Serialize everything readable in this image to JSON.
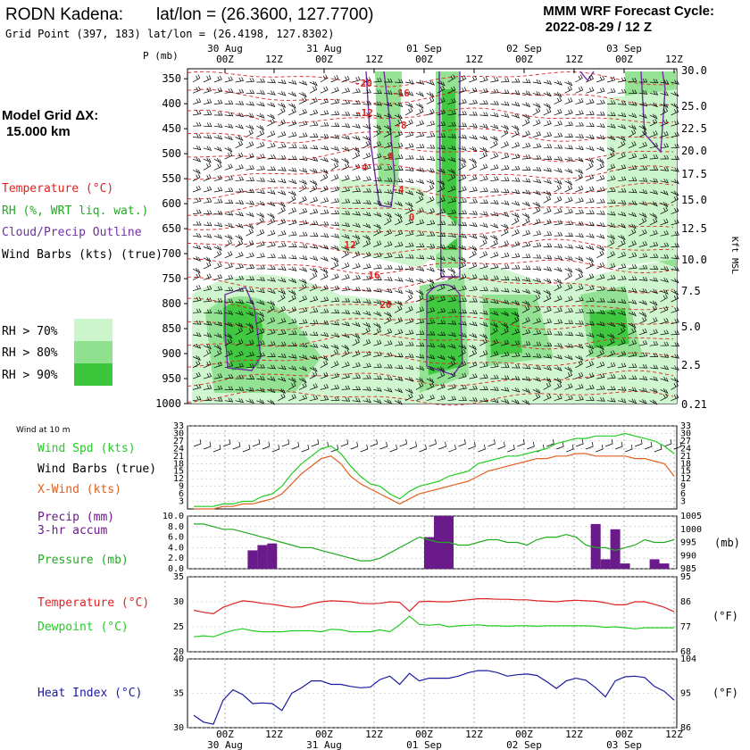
{
  "header": {
    "station": "RODN Kadena:",
    "latlon": "lat/lon = (26.3600, 127.7700)",
    "grid_point": "Grid Point (397, 183) lat/lon = (26.4198, 127.8302)",
    "model_line1": "MMM WRF Forecast Cycle:",
    "model_line2": "2022-08-29 / 12  Z"
  },
  "left_labels": {
    "grid_title": "Model Grid ΔX:",
    "grid_value": "15.000 km",
    "temperature": "Temperature (°C)",
    "rh": "RH (%, WRT liq. wat.)",
    "cloud": "Cloud/Precip Outline",
    "wind_barbs": "Wind Barbs (kts) (true)",
    "rh70": "RH > 70%",
    "rh80": "RH > 80%",
    "rh90": "RH > 90%",
    "wind10m": "Wind at 10 m",
    "wind_spd": "Wind Spd (kts)",
    "wind_barbs2": "Wind Barbs (true)",
    "xwind": "X-Wind (kts)",
    "precip1": "Precip (mm)",
    "precip2": "3-hr accum",
    "pressure": "Pressure (mb)",
    "temp2": "Temperature (°C)",
    "dewpoint": "Dewpoint (°C)",
    "heat_index": "Heat Index (°C)",
    "p_axis": "P (mb)",
    "kft": "Kft MSL",
    "mb_unit": "(mb)",
    "f_unit": "(°F)",
    "f_unit2": "(°F)"
  },
  "colors": {
    "temp": "#dd2222",
    "rh70": "#ccf5cc",
    "rh80": "#8fe08f",
    "rh90": "#3cc63c",
    "cloud": "#7030a0",
    "wind": "#00cc00",
    "xwind": "#e06020",
    "precip": "#6a1a8a",
    "pressure": "#22aa22",
    "dewpoint": "#22cc22",
    "heat": "#1a1aa0"
  },
  "time_axis": {
    "top_days": [
      "30 Aug",
      "31 Aug",
      "01 Sep",
      "02 Sep",
      "03 Sep"
    ],
    "hours": [
      "00Z",
      "12Z",
      "00Z",
      "12Z",
      "00Z",
      "12Z",
      "00Z",
      "12Z",
      "00Z",
      "12Z"
    ],
    "bottom_days": [
      "30 Aug",
      "31 Aug",
      "01 Sep",
      "02 Sep",
      "03 Sep"
    ]
  },
  "chart_data": [
    {
      "type": "heatmap",
      "name": "cross-section",
      "pressure_levels": [
        "350",
        "400",
        "450",
        "500",
        "550",
        "600",
        "650",
        "700",
        "750",
        "800",
        "850",
        "900",
        "950",
        "1000"
      ],
      "height_kft": [
        "30.0",
        "25.0",
        "22.5",
        "20.0",
        "17.5",
        "15.0",
        "12.5",
        "10.0",
        "7.5",
        "5.0",
        "2.5",
        "0.21"
      ],
      "temperature_labels": [
        "-20",
        "-16",
        "-12",
        "-8",
        "-4",
        "-8",
        "-4",
        "0",
        "12",
        "16",
        "20"
      ]
    },
    {
      "type": "line",
      "name": "wind10m",
      "y_ticks": [
        "33",
        "30",
        "27",
        "24",
        "21",
        "18",
        "15",
        "12",
        "9",
        "6",
        "3"
      ],
      "ylim": [
        0,
        33
      ],
      "series": [
        {
          "name": "Wind Spd (kts)",
          "values": [
            1,
            1,
            1,
            2,
            2,
            3,
            3,
            5,
            6,
            9,
            14,
            18,
            21,
            24,
            25,
            22,
            17,
            13,
            10,
            9,
            6,
            4,
            7,
            9,
            10,
            11,
            13,
            14,
            15,
            18,
            19,
            20,
            21,
            21,
            22,
            23,
            24,
            26,
            27,
            28,
            28,
            29,
            29,
            29,
            30,
            29,
            28,
            27,
            25,
            22
          ]
        },
        {
          "name": "X-Wind (kts)",
          "values": [
            0,
            0,
            0,
            1,
            1,
            2,
            2,
            3,
            4,
            6,
            10,
            14,
            17,
            20,
            21,
            18,
            13,
            10,
            8,
            6,
            4,
            2,
            4,
            6,
            7,
            8,
            9,
            10,
            11,
            13,
            15,
            16,
            17,
            18,
            19,
            20,
            20,
            21,
            21,
            22,
            22,
            21,
            21,
            21,
            21,
            20,
            20,
            19,
            18,
            13
          ]
        }
      ]
    },
    {
      "type": "bar",
      "name": "precip_pressure",
      "precip_ticks": [
        "10.0",
        "8.0",
        "6.0",
        "4.0",
        "2.0",
        "0.0"
      ],
      "pressure_ticks": [
        "1005",
        "1000",
        "995",
        "990",
        "985"
      ],
      "precip_ylim": [
        0,
        10
      ],
      "pressure_ylim": [
        985,
        1005
      ],
      "precip_values": [
        0,
        0,
        0,
        0,
        0,
        0,
        3.5,
        4.5,
        4.8,
        0,
        0,
        0,
        0,
        0,
        0,
        0,
        0,
        0,
        0,
        0,
        0,
        0,
        0,
        0,
        6.0,
        10.0,
        10.0,
        0,
        0,
        0,
        0,
        0,
        0,
        0,
        0,
        0,
        0,
        0,
        0,
        0,
        0,
        8.5,
        1.8,
        7.5,
        1.0,
        0,
        0,
        1.8,
        1.0,
        0
      ],
      "pressure_values": [
        1002,
        1002,
        1001,
        1000,
        1000,
        999,
        998,
        997,
        996,
        995,
        994,
        993,
        993,
        992,
        991,
        990,
        989,
        988,
        988,
        989,
        991,
        993,
        995,
        997,
        996,
        995,
        995,
        994,
        994,
        995,
        996,
        996,
        995,
        995,
        994,
        996,
        997,
        997,
        998,
        997,
        994,
        993,
        993,
        992,
        993,
        994,
        996,
        995,
        995,
        996
      ]
    },
    {
      "type": "line",
      "name": "temp_dew",
      "left_ticks": [
        "35",
        "30",
        "25",
        "20"
      ],
      "right_ticks": [
        "95",
        "86",
        "77",
        "68"
      ],
      "ylim": [
        20,
        35
      ],
      "series": [
        {
          "name": "Temperature (°C)",
          "values": [
            28.3,
            27.9,
            27.6,
            28.9,
            29.6,
            30.2,
            30.0,
            29.7,
            29.5,
            29.2,
            28.9,
            29.0,
            29.6,
            30.0,
            30.2,
            30.1,
            30.0,
            29.7,
            29.6,
            29.7,
            30.0,
            29.9,
            28.1,
            30.0,
            30.1,
            30.0,
            30.0,
            30.2,
            30.4,
            30.6,
            30.6,
            30.5,
            30.5,
            30.4,
            30.4,
            30.2,
            30.1,
            30.0,
            30.2,
            30.3,
            30.2,
            30.1,
            29.8,
            29.4,
            29.4,
            30.0,
            30.0,
            29.5,
            28.9,
            28.0
          ]
        },
        {
          "name": "Dewpoint (°C)",
          "values": [
            23.0,
            23.2,
            23.0,
            23.7,
            24.3,
            24.6,
            24.2,
            24.0,
            24.0,
            24.0,
            24.2,
            24.2,
            24.2,
            24.0,
            24.5,
            24.4,
            24.0,
            24.0,
            24.0,
            24.4,
            24.0,
            25.4,
            27.1,
            25.5,
            25.3,
            25.5,
            25.0,
            25.2,
            25.3,
            25.4,
            25.2,
            25.2,
            25.1,
            25.2,
            25.2,
            25.1,
            25.2,
            25.2,
            25.2,
            25.2,
            25.2,
            25.1,
            24.9,
            25.0,
            24.8,
            24.6,
            24.8,
            24.8,
            24.8,
            24.8
          ]
        }
      ]
    },
    {
      "type": "line",
      "name": "heat_index",
      "left_ticks": [
        "40",
        "35",
        "30"
      ],
      "right_ticks": [
        "104",
        "95",
        "86"
      ],
      "ylim": [
        30,
        40
      ],
      "series": [
        {
          "name": "Heat Index (°C)",
          "values": [
            31.8,
            30.8,
            30.5,
            34.0,
            35.5,
            34.8,
            33.5,
            33.6,
            33.5,
            32.5,
            35.0,
            35.8,
            36.8,
            36.8,
            36.3,
            36.3,
            36.0,
            35.8,
            35.9,
            37.0,
            37.5,
            36.3,
            37.9,
            36.8,
            37.2,
            37.2,
            37.2,
            37.5,
            38.0,
            38.3,
            38.3,
            38.0,
            37.5,
            37.7,
            37.8,
            37.6,
            36.7,
            35.7,
            36.8,
            37.2,
            36.9,
            35.8,
            34.5,
            36.8,
            37.4,
            37.5,
            37.3,
            36.0,
            35.3,
            34.0
          ]
        }
      ]
    }
  ]
}
